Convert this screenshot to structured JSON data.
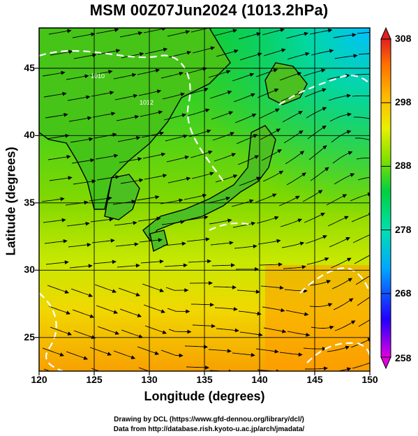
{
  "title": "MSM 00Z07Jun2024 (1013.2hPa)",
  "x_axis": {
    "label": "Longitude (degrees)",
    "range": [
      120,
      150
    ],
    "ticks": [
      "120",
      "125",
      "130",
      "135",
      "140",
      "145",
      "150"
    ]
  },
  "y_axis": {
    "label": "Latitude  (degrees)",
    "range": [
      22.5,
      48
    ],
    "ticks": [
      "25",
      "30",
      "35",
      "40",
      "45"
    ]
  },
  "colorbar": {
    "range": [
      258,
      308
    ],
    "ticks": [
      "308",
      "298",
      "288",
      "278",
      "268",
      "258"
    ],
    "colors": [
      "#e000e0",
      "#0000ff",
      "#00b4ff",
      "#00e0c0",
      "#00d000",
      "#a0e000",
      "#f0f000",
      "#ffb000",
      "#ff7000",
      "#e02020"
    ]
  },
  "credits": {
    "line1": "Drawing by DCL (https://www.gfd-dennou.org/library/dcl/)",
    "line2": "Data from http://database.rish.kyoto-u.ac.jp/arch/jmadata/"
  },
  "map": {
    "field": "temperature (K) with wind streamlines",
    "contour_labels": [
      "1010",
      "1012"
    ],
    "grid": true
  }
}
